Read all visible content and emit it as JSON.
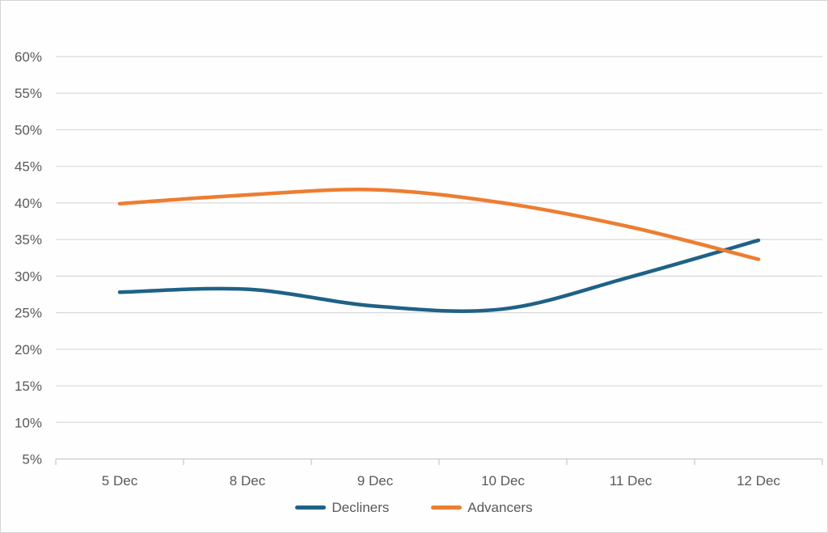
{
  "chart_data": {
    "type": "line",
    "title": "",
    "smooth": true,
    "grid": true,
    "legend_position": "bottom",
    "categories": [
      "5 Dec",
      "8 Dec",
      "9 Dec",
      "10 Dec",
      "11 Dec",
      "12 Dec"
    ],
    "series": [
      {
        "name": "Decliners",
        "color": "#1F6187",
        "values": [
          27.8,
          28.2,
          25.9,
          25.5,
          29.9,
          34.9
        ]
      },
      {
        "name": "Advancers",
        "color": "#ED7D31",
        "values": [
          39.9,
          41.1,
          41.8,
          40.0,
          36.7,
          32.3
        ]
      }
    ],
    "y_axis": {
      "min": 5,
      "max": 60,
      "step": 5,
      "unit": "%",
      "tick_labels": [
        "5%",
        "10%",
        "15%",
        "20%",
        "25%",
        "30%",
        "35%",
        "40%",
        "45%",
        "50%",
        "55%",
        "60%"
      ]
    },
    "x_axis": {
      "tick_labels": [
        "5 Dec",
        "8 Dec",
        "9 Dec",
        "10 Dec",
        "11 Dec",
        "12 Dec"
      ]
    }
  },
  "colors": {
    "background": "#FEFEFE",
    "border": "#D5D5D5",
    "gridline": "#D9D9D9",
    "axis": "#C9C9C9",
    "tick_text": "#595959",
    "legend_text": "#595959"
  }
}
